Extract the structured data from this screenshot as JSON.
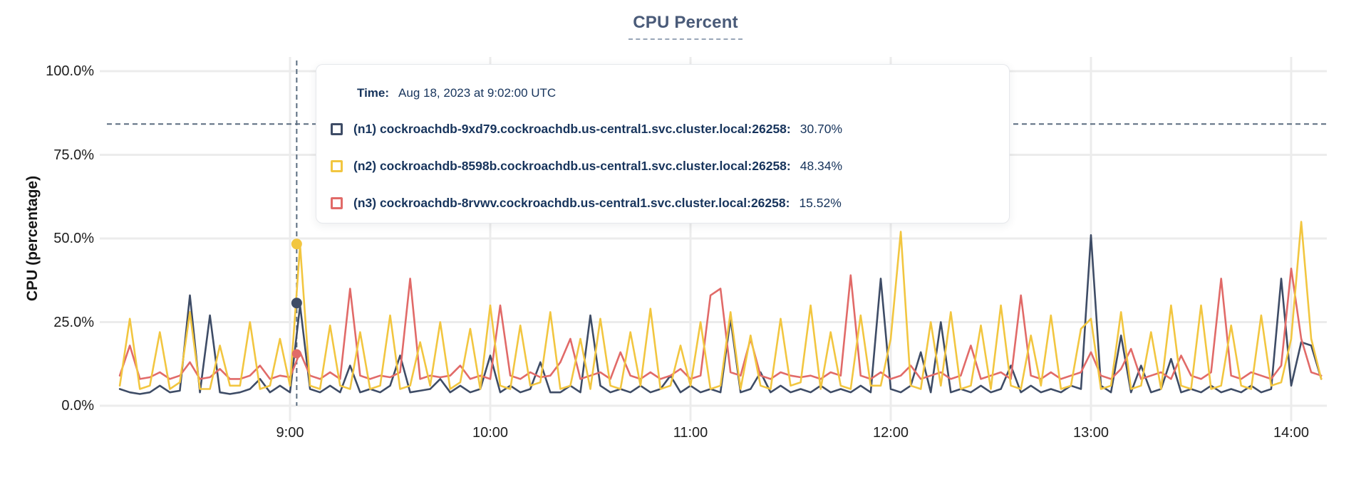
{
  "chart_data": {
    "type": "line",
    "title": "CPU Percent",
    "ylabel": "CPU (percentage)",
    "unit": "%",
    "ylim": [
      0,
      100
    ],
    "grid": true,
    "legend_position": "hover-tooltip",
    "time_reference": "9:00",
    "start_minute": -51,
    "step_minute": 3,
    "hover": {
      "minute": 2,
      "crosshair_pct": 84.2,
      "time_label": "Time:",
      "time_value": "Aug 18, 2023 at 9:02:00 UTC"
    },
    "series": [
      {
        "id": "n1",
        "name": "(n1) cockroachdb-9xd79.cockroachdb.us-central1.svc.cluster.local:26258:",
        "color": "#3e4c66",
        "hover_value": 30.7,
        "hover_value_label": "30.70%",
        "values": [
          5,
          4,
          3.5,
          4,
          6,
          4,
          4.5,
          33,
          4,
          27,
          4,
          3.5,
          4,
          5,
          8,
          4,
          6,
          4,
          30,
          5,
          4,
          6,
          4,
          12,
          4,
          5,
          4,
          6,
          15,
          4,
          4.5,
          5,
          8,
          4,
          6,
          4,
          5,
          15,
          4,
          6,
          4,
          5,
          13,
          4,
          4,
          6,
          4,
          27,
          6,
          4,
          5,
          4,
          6,
          4,
          5,
          9,
          4,
          6,
          4,
          5,
          4,
          26,
          4,
          5,
          10,
          4,
          6,
          4,
          5,
          4,
          6,
          4,
          5,
          4,
          6,
          4,
          38,
          5,
          4,
          6,
          16,
          4,
          25,
          4,
          5,
          4,
          6,
          4,
          5,
          12,
          4,
          6,
          4,
          5,
          4,
          6,
          5,
          51,
          6,
          4,
          21,
          4,
          12,
          4,
          5,
          14,
          4,
          5,
          4,
          6,
          4,
          5,
          4,
          6,
          4,
          5,
          38,
          6,
          19,
          18,
          8
        ]
      },
      {
        "id": "n2",
        "name": "(n2) cockroachdb-8598b.cockroachdb.us-central1.svc.cluster.local:26258:",
        "color": "#f2c640",
        "hover_value": 48.34,
        "hover_value_label": "48.34%",
        "values": [
          6,
          26,
          5,
          6,
          22,
          5,
          7,
          28,
          5,
          5,
          18,
          6,
          6,
          25,
          5,
          6,
          20,
          6,
          48,
          6,
          5,
          24,
          6,
          5,
          22,
          5,
          6,
          27,
          5,
          6,
          19,
          6,
          25,
          5,
          7,
          23,
          5,
          30,
          6,
          5,
          24,
          6,
          7,
          28,
          5,
          6,
          20,
          5,
          26,
          6,
          5,
          22,
          6,
          29,
          5,
          6,
          18,
          6,
          25,
          5,
          6,
          28,
          5,
          21,
          6,
          5,
          26,
          6,
          7,
          30,
          5,
          22,
          6,
          5,
          27,
          6,
          6,
          20,
          52,
          6,
          5,
          25,
          6,
          28,
          5,
          6,
          24,
          5,
          30,
          6,
          5,
          21,
          6,
          27,
          5,
          6,
          23,
          26,
          5,
          6,
          28,
          5,
          6,
          22,
          5,
          30,
          6,
          5,
          30,
          5,
          6,
          24,
          6,
          5,
          27,
          6,
          7,
          20,
          55,
          20,
          8
        ]
      },
      {
        "id": "n3",
        "name": "(n3) cockroachdb-8rvwv.cockroachdb.us-central1.svc.cluster.local:26258:",
        "color": "#e16a68",
        "hover_value": 15.52,
        "hover_value_label": "15.52%",
        "values": [
          9,
          18,
          8,
          8.5,
          10,
          8,
          9,
          13,
          8,
          8.5,
          11,
          8,
          8,
          9,
          12,
          8,
          9,
          8.5,
          16,
          9,
          8,
          10,
          8,
          35,
          9,
          8,
          9,
          8.5,
          10,
          38,
          8,
          9,
          8.5,
          9,
          12,
          8,
          9,
          8,
          30,
          9,
          8,
          10,
          8.5,
          9,
          13,
          20,
          8,
          9,
          10,
          8,
          16,
          9,
          8,
          10,
          8,
          9,
          11,
          8,
          9,
          33,
          35,
          10,
          9,
          20,
          9,
          8,
          10,
          9,
          8.5,
          9,
          8,
          10,
          9,
          39,
          9,
          8,
          10,
          8,
          9,
          12,
          8,
          9,
          10,
          8,
          9,
          18,
          8,
          9,
          10,
          8,
          33,
          9,
          8,
          10,
          8,
          9,
          10,
          16,
          9,
          8,
          11,
          17,
          8,
          9,
          10,
          8,
          15,
          9,
          8,
          10,
          38,
          9,
          8,
          10,
          9,
          8,
          12,
          41,
          20,
          10,
          9
        ]
      }
    ]
  },
  "axes": {
    "y_label": "CPU (percentage)",
    "y_ticks": [
      {
        "label": "0.0%",
        "value": 0
      },
      {
        "label": "25.0%",
        "value": 25
      },
      {
        "label": "50.0%",
        "value": 50
      },
      {
        "label": "75.0%",
        "value": 75
      },
      {
        "label": "100.0%",
        "value": 100
      }
    ],
    "x_ticks": [
      {
        "label": "9:00",
        "minute": 0
      },
      {
        "label": "10:00",
        "minute": 60
      },
      {
        "label": "11:00",
        "minute": 120
      },
      {
        "label": "12:00",
        "minute": 180
      },
      {
        "label": "13:00",
        "minute": 240
      },
      {
        "label": "14:00",
        "minute": 300
      }
    ]
  },
  "colors": {
    "grid": "#ececec",
    "crosshair": "#5b6d80",
    "title": "#4a5b79",
    "tooltip_text": "#17345c"
  }
}
